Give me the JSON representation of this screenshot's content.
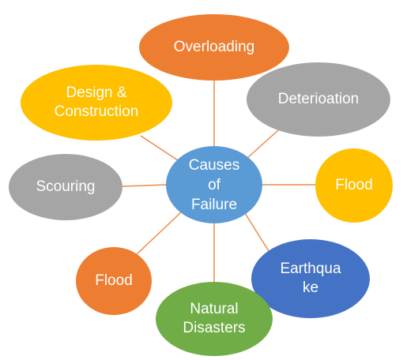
{
  "diagram": {
    "center": {
      "label": "Causes\nof\nFailure",
      "color": "#5b9bd5"
    },
    "connector_color": "#ed8a4a",
    "nodes": [
      {
        "id": "overloading",
        "label": "Overloading",
        "color": "#ed7d31"
      },
      {
        "id": "design",
        "label": "Design &\nConstruction",
        "color": "#ffc000"
      },
      {
        "id": "deterioration",
        "label": "Deterioation",
        "color": "#a5a5a5"
      },
      {
        "id": "scouring",
        "label": "Scouring",
        "color": "#a5a5a5"
      },
      {
        "id": "flood-right",
        "label": "Flood",
        "color": "#ffc000"
      },
      {
        "id": "flood-left",
        "label": "Flood",
        "color": "#ed7d31"
      },
      {
        "id": "earthquake",
        "label": "Earthqua\nke",
        "color": "#4472c4"
      },
      {
        "id": "natural",
        "label": "Natural\nDisasters",
        "color": "#70ad47"
      }
    ]
  }
}
